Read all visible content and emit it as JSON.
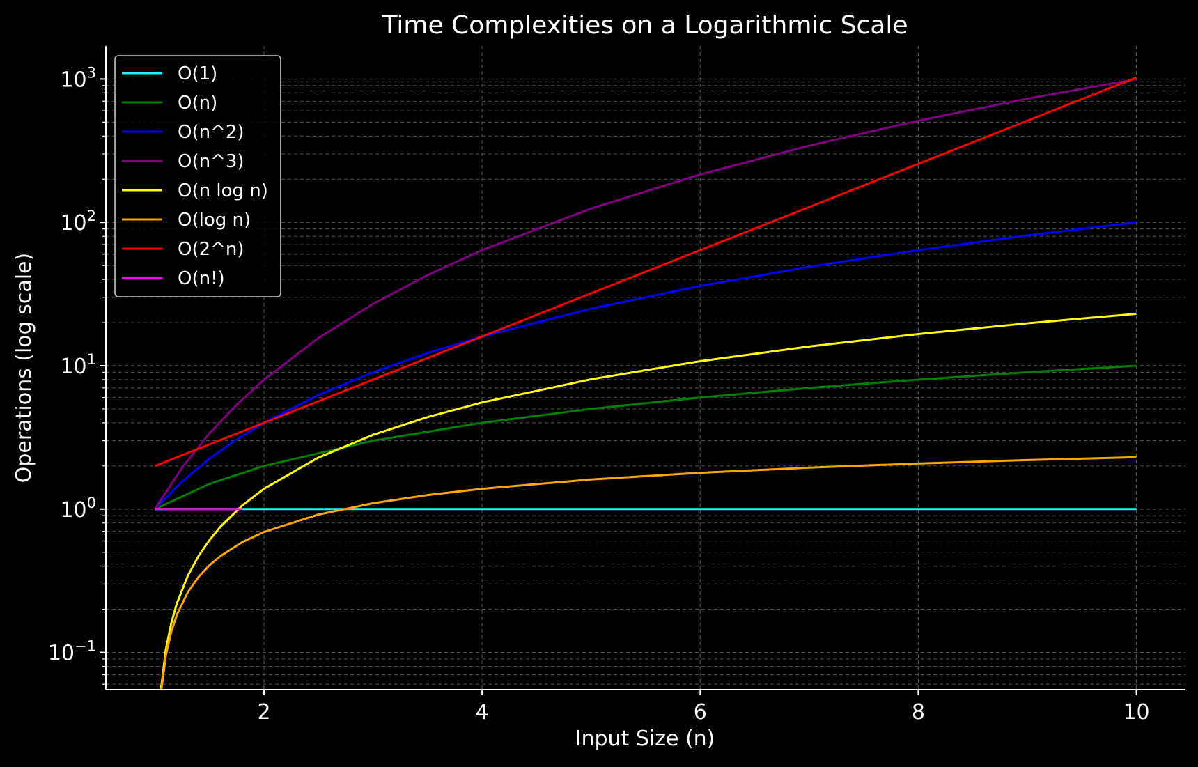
{
  "chart_data": {
    "type": "line",
    "title": "Time Complexities on a Logarithmic Scale",
    "xlabel": "Input Size (n)",
    "ylabel": "Operations (log scale)",
    "xlim": [
      0.55,
      10.45
    ],
    "ylim": [
      0.055,
      1700
    ],
    "x_ticks": [
      2,
      4,
      6,
      8,
      10
    ],
    "x_tick_labels": [
      "2",
      "4",
      "6",
      "8",
      "10"
    ],
    "y_scale": "log",
    "y_ticks": [
      {
        "value": 0.1,
        "base": "10",
        "exp": "−1"
      },
      {
        "value": 1,
        "base": "10",
        "exp": "0"
      },
      {
        "value": 10,
        "base": "10",
        "exp": "1"
      },
      {
        "value": 100,
        "base": "10",
        "exp": "2"
      },
      {
        "value": 1000,
        "base": "10",
        "exp": "3"
      }
    ],
    "grid": true,
    "background": "#000000",
    "grid_color": "#5a5a5a",
    "legend_position": "top-left",
    "series": [
      {
        "name": "O(1)",
        "color": "#00ffff",
        "x": [
          1,
          10
        ],
        "y": [
          1,
          1
        ]
      },
      {
        "name": "O(n)",
        "color": "#008000",
        "x": [
          1,
          1.5,
          2,
          3,
          4,
          5,
          6,
          7,
          8,
          9,
          10
        ],
        "y": [
          1,
          1.5,
          2,
          3,
          4,
          5,
          6,
          7,
          8,
          9,
          10
        ]
      },
      {
        "name": "O(n^2)",
        "color": "#0000ff",
        "x": [
          1,
          1.25,
          1.5,
          1.75,
          2,
          2.5,
          3,
          3.5,
          4,
          5,
          6,
          7,
          8,
          9,
          10
        ],
        "y": [
          1,
          1.5625,
          2.25,
          3.0625,
          4,
          6.25,
          9,
          12.25,
          16,
          25,
          36,
          49,
          64,
          81,
          100
        ]
      },
      {
        "name": "O(n^3)",
        "color": "#800080",
        "x": [
          1,
          1.25,
          1.5,
          1.75,
          2,
          2.5,
          3,
          3.5,
          4,
          5,
          6,
          7,
          8,
          9,
          10
        ],
        "y": [
          1,
          1.953,
          3.375,
          5.359,
          8,
          15.625,
          27,
          42.875,
          64,
          125,
          216,
          343,
          512,
          729,
          1000
        ]
      },
      {
        "name": "O(n log n)",
        "color": "#ffff00",
        "x": [
          1.02,
          1.05,
          1.1,
          1.15,
          1.2,
          1.3,
          1.4,
          1.5,
          1.6,
          1.8,
          2,
          2.5,
          3,
          3.5,
          4,
          5,
          6,
          7,
          8,
          9,
          10
        ],
        "y": [
          0.0202,
          0.0512,
          0.1048,
          0.1607,
          0.2188,
          0.3411,
          0.4711,
          0.6082,
          0.752,
          1.058,
          1.386,
          2.291,
          3.296,
          4.385,
          5.545,
          8.047,
          10.751,
          13.621,
          16.636,
          19.775,
          23.026
        ]
      },
      {
        "name": "O(log n)",
        "color": "#ffa500",
        "x": [
          1.02,
          1.05,
          1.1,
          1.15,
          1.2,
          1.3,
          1.4,
          1.5,
          1.6,
          1.8,
          2,
          2.5,
          3,
          3.5,
          4,
          5,
          6,
          7,
          8,
          9,
          10
        ],
        "y": [
          0.0198,
          0.0488,
          0.0953,
          0.1398,
          0.1823,
          0.2624,
          0.3365,
          0.4055,
          0.47,
          0.5878,
          0.6931,
          0.9163,
          1.0986,
          1.2528,
          1.3863,
          1.6094,
          1.7918,
          1.9459,
          2.0794,
          2.1972,
          2.3026
        ]
      },
      {
        "name": "O(2^n)",
        "color": "#ff0000",
        "x": [
          1,
          2,
          3,
          4,
          5,
          6,
          7,
          8,
          9,
          10
        ],
        "y": [
          2,
          4,
          8,
          16,
          32,
          64,
          128,
          256,
          512,
          1024
        ]
      },
      {
        "name": "O(n!)",
        "color": "#ff00ff",
        "x": [
          1,
          1.8
        ],
        "y": [
          1,
          1
        ]
      }
    ]
  }
}
